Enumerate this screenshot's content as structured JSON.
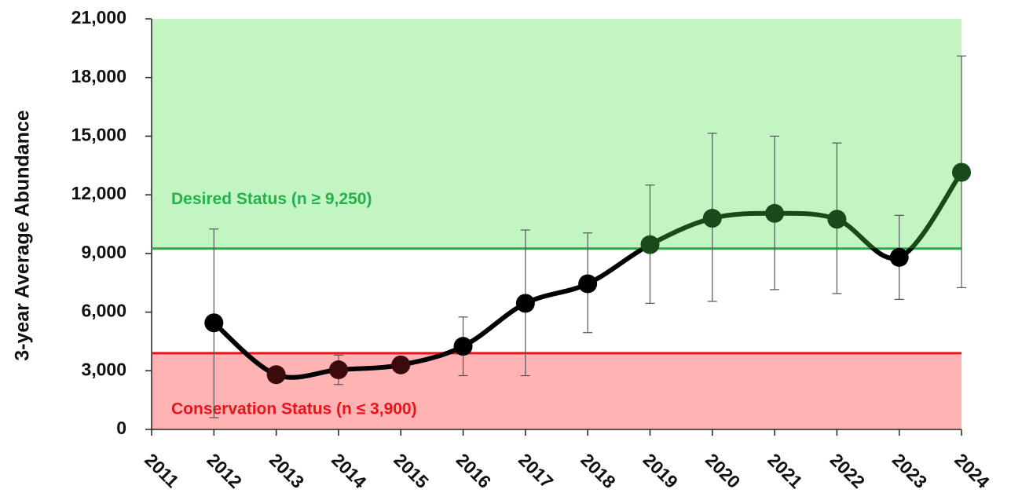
{
  "chart_data": {
    "type": "line",
    "y_label": "3-year Average Abundance",
    "x": [
      2012,
      2013,
      2014,
      2015,
      2016,
      2017,
      2018,
      2019,
      2020,
      2021,
      2022,
      2023,
      2024
    ],
    "series": [
      {
        "color": "#000000",
        "color_above": "#1a4a1a",
        "color_below": "#3b0b0b",
        "values": [
          5450,
          2800,
          3050,
          3300,
          4250,
          6450,
          7450,
          9450,
          10800,
          11050,
          10750,
          8800,
          13150
        ],
        "upper": [
          10250,
          null,
          3800,
          null,
          5750,
          10200,
          10050,
          12500,
          15150,
          15000,
          14650,
          10950,
          19100
        ],
        "lower": [
          600,
          null,
          2300,
          null,
          2750,
          2750,
          4950,
          6450,
          6550,
          7150,
          6950,
          6650,
          7250
        ],
        "error_color": "#555555"
      }
    ],
    "reference_lines": [
      {
        "value": 9250,
        "label": "Desired Status (n ≥ 9,250)",
        "color": "#22b14c"
      },
      {
        "value": 3900,
        "label": "Conservation Status (n ≤ 3,900)",
        "color": "#e8141e"
      }
    ],
    "zones": [
      {
        "from": 9250,
        "to": 21000,
        "color": "#c2f5c2"
      },
      {
        "from": 0,
        "to": 3900,
        "color": "#ffb3b3"
      }
    ],
    "xlim": [
      2011,
      2024
    ],
    "xticks": [
      2011,
      2012,
      2013,
      2014,
      2015,
      2016,
      2017,
      2018,
      2019,
      2020,
      2021,
      2022,
      2023,
      2024
    ],
    "ylim": [
      0,
      21000
    ],
    "yticks": [
      0,
      {
        "value": 3000,
        "label": "3,000"
      },
      {
        "value": 6000,
        "label": "6,000"
      },
      {
        "value": 9000,
        "label": "9,000"
      },
      {
        "value": 12000,
        "label": "12,000"
      },
      {
        "value": 15000,
        "label": "15,000"
      },
      {
        "value": 18000,
        "label": "18,000"
      },
      {
        "value": 21000,
        "label": "21,000"
      }
    ]
  }
}
